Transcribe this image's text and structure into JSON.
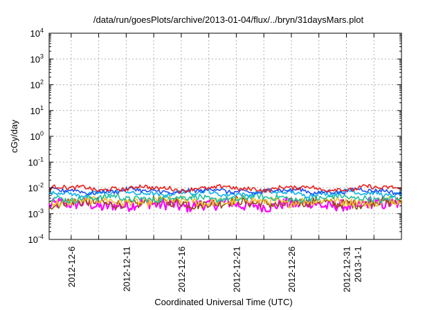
{
  "chart_data": {
    "type": "line",
    "title": "/data/run/goesPlots/archive/2013-01-04/flux/../bryn/31daysMars.plot",
    "xlabel": "Coordinated Universal Time (UTC)",
    "ylabel": "cGy/day",
    "yscale": "log",
    "ylim_exponents": [
      -4,
      4
    ],
    "y_ticks": [
      {
        "base": "10",
        "exp": "4"
      },
      {
        "base": "10",
        "exp": "3"
      },
      {
        "base": "10",
        "exp": "2"
      },
      {
        "base": "10",
        "exp": "1"
      },
      {
        "base": "10",
        "exp": "0"
      },
      {
        "base": "10",
        "exp": "-1"
      },
      {
        "base": "10",
        "exp": "-2"
      },
      {
        "base": "10",
        "exp": "-3"
      },
      {
        "base": "10",
        "exp": "-4"
      }
    ],
    "x_ticks": [
      "2012-12-6",
      "2012-12-11",
      "2012-12-16",
      "2012-12-21",
      "2012-12-26",
      "2012-12-31",
      "2013-1-1"
    ],
    "x_range": [
      "2012-12-4",
      "2013-1-5"
    ],
    "grid": true,
    "series": [
      {
        "color": "#e8201e",
        "level": 0.0095,
        "amp": 0.08
      },
      {
        "color": "#2050f0",
        "level": 0.0075,
        "amp": 0.08
      },
      {
        "color": "#10b0f0",
        "level": 0.0062,
        "amp": 0.08
      },
      {
        "color": "#20c0a0",
        "level": 0.004,
        "amp": 0.12
      },
      {
        "color": "#f0c030",
        "level": 0.003,
        "amp": 0.16
      },
      {
        "color": "#905010",
        "level": 0.0026,
        "amp": 0.18
      },
      {
        "color": "#ff00ff",
        "level": 0.0022,
        "amp": 0.22
      }
    ]
  }
}
